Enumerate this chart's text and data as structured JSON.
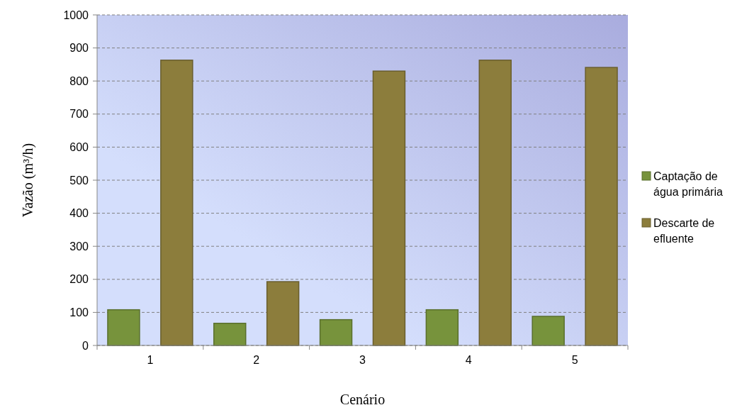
{
  "chart_data": {
    "type": "bar",
    "xlabel": "Cenário",
    "ylabel": "Vazão (m³/h)",
    "categories": [
      "1",
      "2",
      "3",
      "4",
      "5"
    ],
    "series": [
      {
        "name": "Captação de água primária",
        "color": "#77933c",
        "values": [
          108,
          67,
          78,
          108,
          88
        ]
      },
      {
        "name": "Descarte de efluente",
        "color": "#8c7d3c",
        "values": [
          863,
          193,
          830,
          863,
          841
        ]
      }
    ],
    "ylim": [
      0,
      1000
    ],
    "yticks": [
      0,
      100,
      200,
      300,
      400,
      500,
      600,
      700,
      800,
      900,
      1000
    ],
    "grid": "y",
    "legend": "right"
  }
}
